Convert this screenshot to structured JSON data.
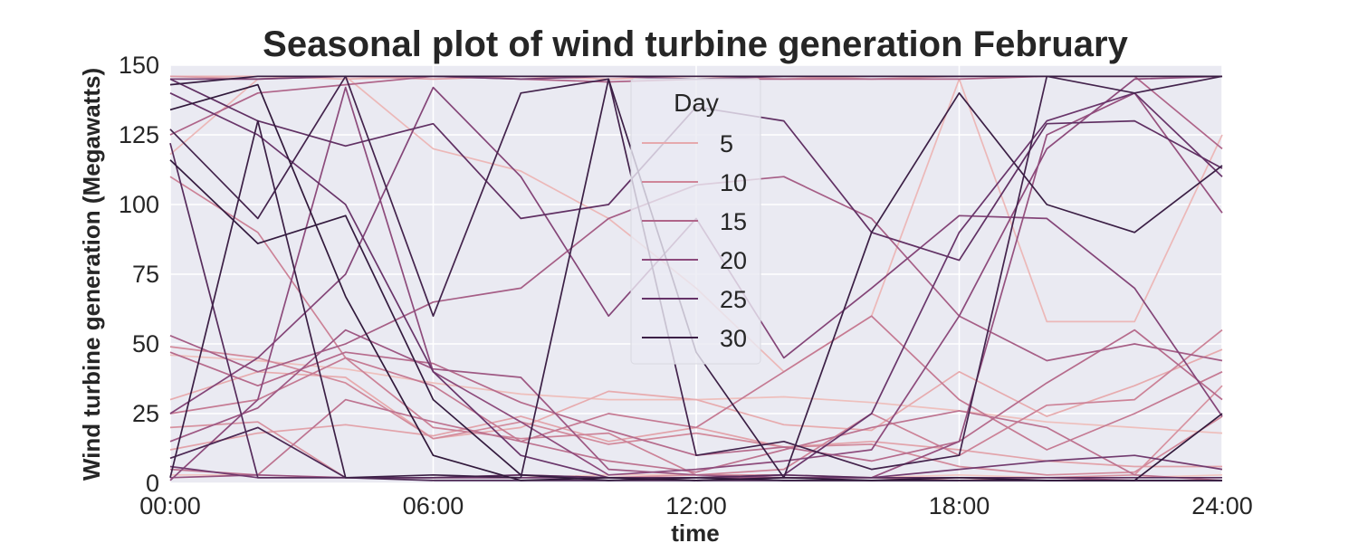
{
  "chart_data": {
    "type": "line",
    "title": "Seasonal plot of wind turbine generation February",
    "xlabel": "time",
    "ylabel": "Wind turbine generation (Megawatts)",
    "xlim": [
      0,
      24
    ],
    "ylim": [
      0,
      150
    ],
    "x_ticks": [
      "00:00",
      "06:00",
      "12:00",
      "18:00",
      "24:00"
    ],
    "y_ticks": [
      "0",
      "25",
      "50",
      "75",
      "100",
      "125",
      "150"
    ],
    "grid": true,
    "legend": {
      "title": "Day",
      "placement": "upper-center",
      "entries": [
        {
          "label": "5",
          "color": "#e6a9ad"
        },
        {
          "label": "10",
          "color": "#cf8598"
        },
        {
          "label": "15",
          "color": "#b06589"
        },
        {
          "label": "20",
          "color": "#8c4a7c"
        },
        {
          "label": "25",
          "color": "#653368"
        },
        {
          "label": "30",
          "color": "#3c2046"
        }
      ]
    },
    "series": [
      {
        "day": 1,
        "x": [
          0,
          2,
          4,
          6,
          8,
          10,
          12,
          14,
          16,
          18,
          20,
          22,
          24
        ],
        "values": [
          3,
          3,
          2,
          2,
          2,
          3,
          3,
          2,
          2,
          3,
          2,
          2,
          3
        ]
      },
      {
        "day": 2,
        "x": [
          0,
          2,
          4,
          6,
          8,
          10,
          12,
          14,
          16,
          18,
          20,
          22,
          24
        ],
        "values": [
          46,
          44,
          41,
          36,
          32,
          30,
          30,
          31,
          29,
          26,
          22,
          20,
          18
        ]
      },
      {
        "day": 3,
        "x": [
          0,
          2,
          4,
          6,
          8,
          10,
          12,
          14,
          16,
          18,
          20,
          22,
          24
        ],
        "values": [
          118,
          145,
          146,
          120,
          112,
          95,
          70,
          40,
          60,
          145,
          58,
          58,
          125
        ]
      },
      {
        "day": 4,
        "x": [
          0,
          2,
          4,
          6,
          8,
          10,
          12,
          14,
          16,
          18,
          20,
          22,
          24
        ],
        "values": [
          146,
          146,
          145,
          146,
          146,
          145,
          146,
          145,
          146,
          146,
          146,
          146,
          146
        ]
      },
      {
        "day": 5,
        "x": [
          0,
          2,
          4,
          6,
          8,
          10,
          12,
          14,
          16,
          18,
          20,
          22,
          24
        ],
        "values": [
          30,
          40,
          38,
          16,
          20,
          33,
          30,
          21,
          19,
          40,
          24,
          35,
          48
        ]
      },
      {
        "day": 6,
        "x": [
          0,
          2,
          4,
          6,
          8,
          10,
          12,
          14,
          16,
          18,
          20,
          22,
          24
        ],
        "values": [
          12,
          18,
          21,
          17,
          24,
          15,
          20,
          13,
          15,
          12,
          8,
          6,
          6
        ]
      },
      {
        "day": 7,
        "x": [
          0,
          2,
          4,
          6,
          8,
          10,
          12,
          14,
          16,
          18,
          20,
          22,
          24
        ],
        "values": [
          146,
          145,
          146,
          145,
          146,
          146,
          146,
          146,
          145,
          146,
          146,
          146,
          146
        ]
      },
      {
        "day": 8,
        "x": [
          0,
          2,
          4,
          6,
          8,
          10,
          12,
          14,
          16,
          18,
          20,
          22,
          24
        ],
        "values": [
          20,
          22,
          2,
          2,
          3,
          2,
          3,
          3,
          2,
          1,
          2,
          3,
          35
        ]
      },
      {
        "day": 9,
        "x": [
          0,
          2,
          4,
          6,
          8,
          10,
          12,
          14,
          16,
          18,
          20,
          22,
          24
        ],
        "values": [
          49,
          45,
          36,
          16,
          22,
          14,
          18,
          13,
          14,
          6,
          3,
          4,
          24
        ]
      },
      {
        "day": 10,
        "x": [
          0,
          2,
          4,
          6,
          8,
          10,
          12,
          14,
          16,
          18,
          20,
          22,
          24
        ],
        "values": [
          110,
          90,
          45,
          20,
          16,
          18,
          3,
          5,
          25,
          10,
          28,
          30,
          55
        ]
      },
      {
        "day": 11,
        "x": [
          0,
          2,
          4,
          6,
          8,
          10,
          12,
          14,
          16,
          18,
          20,
          22,
          24
        ],
        "values": [
          25,
          30,
          45,
          35,
          15,
          25,
          20,
          40,
          60,
          30,
          12,
          25,
          40
        ]
      },
      {
        "day": 12,
        "x": [
          0,
          2,
          4,
          6,
          8,
          10,
          12,
          14,
          16,
          18,
          20,
          22,
          24
        ],
        "values": [
          5,
          3,
          30,
          22,
          15,
          8,
          4,
          12,
          20,
          26,
          20,
          3,
          1
        ]
      },
      {
        "day": 13,
        "x": [
          0,
          2,
          4,
          6,
          8,
          10,
          12,
          14,
          16,
          18,
          20,
          22,
          24
        ],
        "values": [
          47,
          35,
          47,
          43,
          29,
          19,
          10,
          13,
          8,
          15,
          36,
          55,
          30
        ]
      },
      {
        "day": 14,
        "x": [
          0,
          2,
          4,
          6,
          8,
          10,
          12,
          14,
          16,
          18,
          20,
          22,
          24
        ],
        "values": [
          125,
          140,
          143,
          146,
          145,
          144,
          145,
          145,
          145,
          145,
          146,
          146,
          120
        ]
      },
      {
        "day": 15,
        "x": [
          0,
          2,
          4,
          6,
          8,
          10,
          12,
          14,
          16,
          18,
          20,
          22,
          24
        ],
        "values": [
          53,
          40,
          50,
          65,
          70,
          95,
          107,
          110,
          95,
          60,
          44,
          50,
          44
        ]
      },
      {
        "day": 16,
        "x": [
          0,
          2,
          4,
          6,
          8,
          10,
          12,
          14,
          16,
          18,
          20,
          22,
          24
        ],
        "values": [
          15,
          27,
          55,
          41,
          38,
          5,
          3,
          2,
          2,
          2,
          2,
          1,
          1
        ]
      },
      {
        "day": 17,
        "x": [
          0,
          2,
          4,
          6,
          8,
          10,
          12,
          14,
          16,
          18,
          20,
          22,
          24
        ],
        "values": [
          2,
          3,
          2,
          2,
          2,
          2,
          2,
          2,
          2,
          15,
          125,
          140,
          97
        ]
      },
      {
        "day": 18,
        "x": [
          0,
          2,
          4,
          6,
          8,
          10,
          12,
          14,
          16,
          18,
          20,
          22,
          24
        ],
        "values": [
          1,
          30,
          142,
          40,
          22,
          3,
          5,
          8,
          12,
          60,
          120,
          145,
          146
        ]
      },
      {
        "day": 19,
        "x": [
          0,
          2,
          4,
          6,
          8,
          10,
          12,
          14,
          16,
          18,
          20,
          22,
          24
        ],
        "values": [
          25,
          45,
          75,
          142,
          110,
          60,
          95,
          45,
          70,
          96,
          95,
          70,
          24
        ]
      },
      {
        "day": 20,
        "x": [
          0,
          2,
          4,
          6,
          8,
          10,
          12,
          14,
          16,
          18,
          20,
          22,
          24
        ],
        "values": [
          145,
          145,
          146,
          146,
          145,
          146,
          145,
          146,
          146,
          146,
          146,
          146,
          146
        ]
      },
      {
        "day": 21,
        "x": [
          0,
          2,
          4,
          6,
          8,
          10,
          12,
          14,
          16,
          18,
          20,
          22,
          24
        ],
        "values": [
          6,
          2,
          2,
          2,
          2,
          2,
          1,
          2,
          2,
          5,
          8,
          10,
          5
        ]
      },
      {
        "day": 22,
        "x": [
          0,
          2,
          4,
          6,
          8,
          10,
          12,
          14,
          16,
          18,
          20,
          22,
          24
        ],
        "values": [
          140,
          125,
          100,
          40,
          10,
          2,
          2,
          3,
          25,
          90,
          130,
          140,
          110
        ]
      },
      {
        "day": 23,
        "x": [
          0,
          2,
          4,
          6,
          8,
          10,
          12,
          14,
          16,
          18,
          20,
          22,
          24
        ],
        "values": [
          145,
          130,
          121,
          129,
          95,
          100,
          135,
          130,
          90,
          80,
          129,
          130,
          113
        ]
      },
      {
        "day": 24,
        "x": [
          0,
          2,
          4,
          6,
          8,
          10,
          12,
          14,
          16,
          18,
          20,
          22,
          24
        ],
        "values": [
          122,
          2,
          2,
          2,
          3,
          2,
          2,
          3,
          2,
          2,
          2,
          2,
          2
        ]
      },
      {
        "day": 25,
        "x": [
          0,
          2,
          4,
          6,
          8,
          10,
          12,
          14,
          16,
          18,
          20,
          22,
          24
        ],
        "values": [
          9,
          20,
          2,
          1,
          1,
          1,
          1,
          1,
          1,
          1,
          1,
          1,
          1
        ]
      },
      {
        "day": 26,
        "x": [
          0,
          2,
          4,
          6,
          8,
          10,
          12,
          14,
          16,
          18,
          20,
          22,
          24
        ],
        "values": [
          127,
          95,
          146,
          60,
          140,
          145,
          10,
          15,
          5,
          10,
          146,
          140,
          146
        ]
      },
      {
        "day": 27,
        "x": [
          0,
          2,
          4,
          6,
          8,
          10,
          12,
          14,
          16,
          18,
          20,
          22,
          24
        ],
        "values": [
          2,
          130,
          2,
          3,
          2,
          145,
          47,
          2,
          90,
          140,
          100,
          90,
          114
        ]
      },
      {
        "day": 28,
        "x": [
          0,
          2,
          4,
          6,
          8,
          10,
          12,
          14,
          16,
          18,
          20,
          22,
          24
        ],
        "values": [
          143,
          146,
          146,
          146,
          146,
          146,
          146,
          146,
          146,
          146,
          146,
          146,
          146
        ]
      },
      {
        "day": 29,
        "x": [
          0,
          2,
          4,
          6,
          8,
          10,
          12,
          14,
          16,
          18,
          20,
          22,
          24
        ],
        "values": [
          116,
          86,
          96,
          30,
          3,
          1,
          2,
          1,
          1,
          1,
          1,
          1,
          1
        ]
      },
      {
        "day": 30,
        "x": [
          0,
          2,
          4,
          6,
          8,
          10,
          12,
          14,
          16,
          18,
          20,
          22,
          24
        ],
        "values": [
          134,
          143,
          67,
          10,
          1,
          2,
          1,
          2,
          1,
          2,
          1,
          1,
          25
        ]
      }
    ]
  }
}
